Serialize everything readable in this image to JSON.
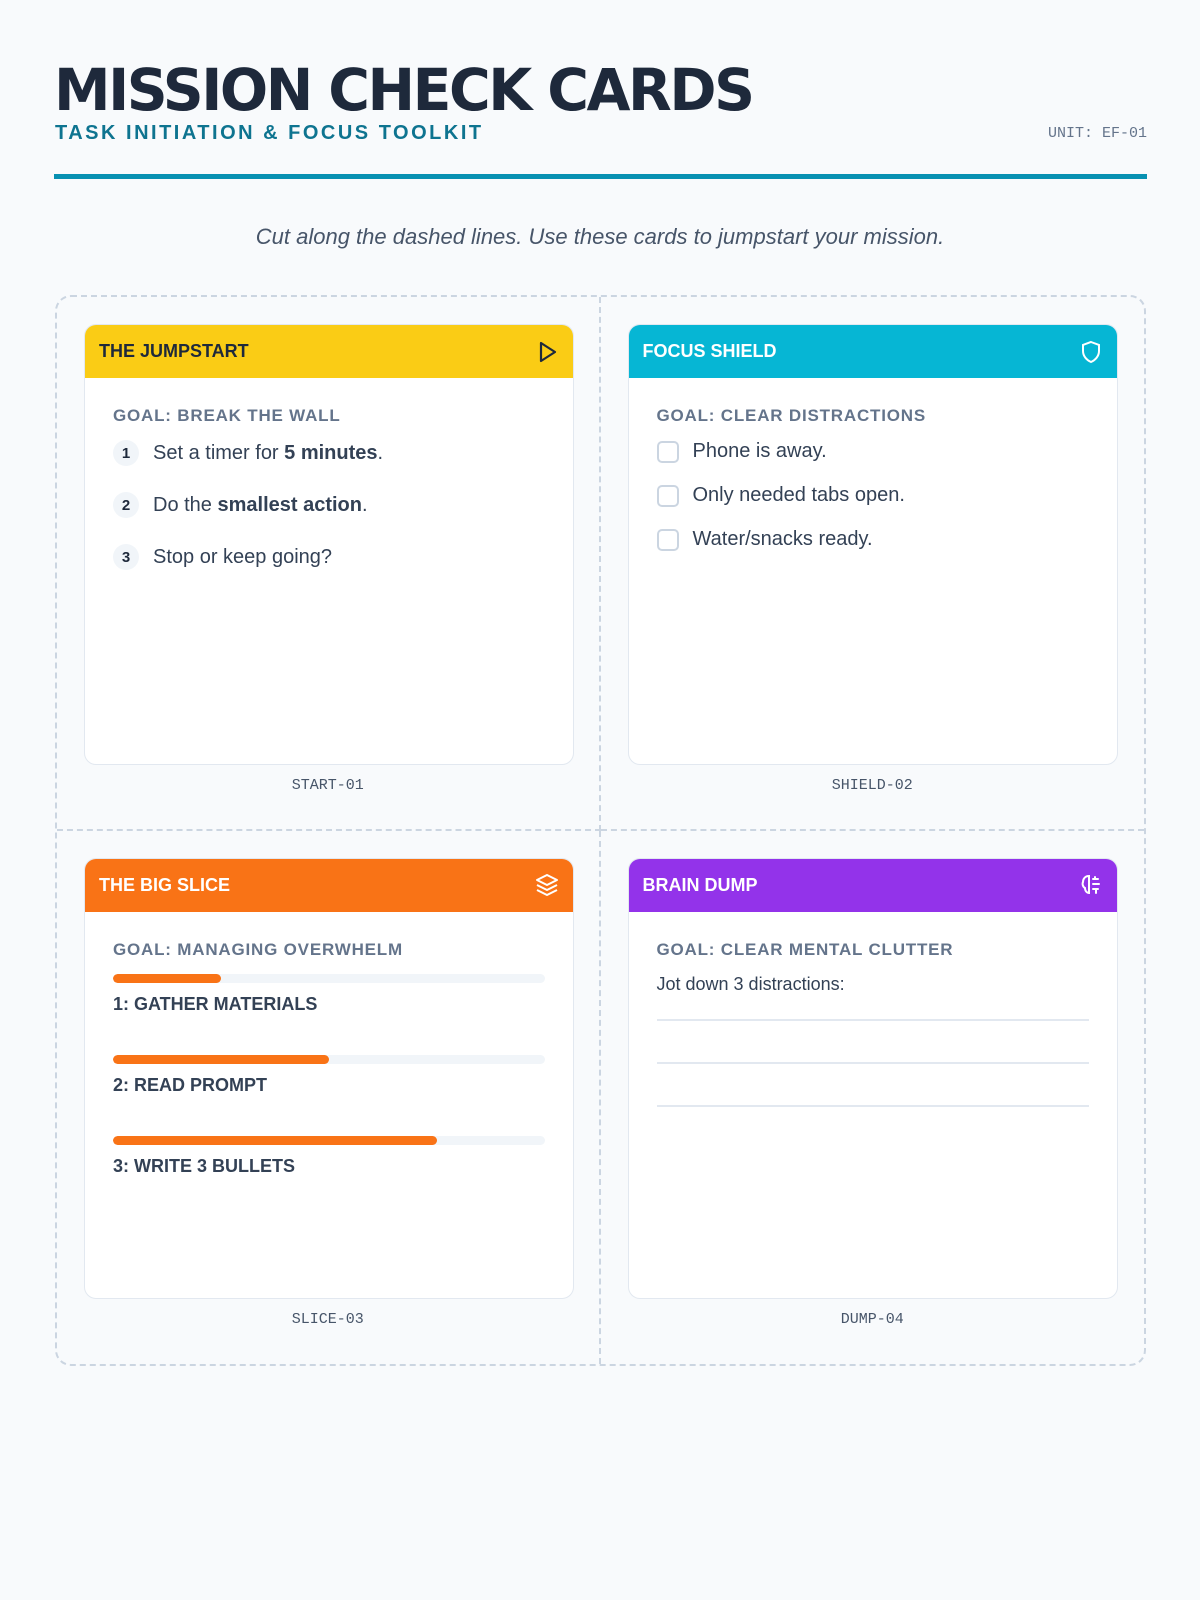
{
  "header": {
    "title": "MISSION CHECK CARDS",
    "subtitle": "TASK INITIATION & FOCUS TOOLKIT",
    "unit": "UNIT: EF-01",
    "instructions": "Cut along the dashed lines. Use these cards to jumpstart your mission."
  },
  "colors": {
    "accent": "#0891b2",
    "jumpstart": "#facc15",
    "shield": "#06b6d4",
    "slice": "#f97316",
    "dump": "#9333ea"
  },
  "cards": [
    {
      "title": "THE JUMPSTART",
      "icon": "play-icon",
      "goal": "GOAL: BREAK THE WALL",
      "code": "START-01",
      "steps": [
        {
          "n": "1",
          "pre": "Set a timer for ",
          "bold": "5 minutes",
          "post": "."
        },
        {
          "n": "2",
          "pre": "Do the ",
          "bold": "smallest action",
          "post": "."
        },
        {
          "n": "3",
          "pre": "Stop or keep going?",
          "bold": "",
          "post": ""
        }
      ]
    },
    {
      "title": "FOCUS SHIELD",
      "icon": "shield-icon",
      "goal": "GOAL: CLEAR DISTRACTIONS",
      "code": "SHIELD-02",
      "checks": [
        "Phone is away.",
        "Only needed tabs open.",
        "Water/snacks ready."
      ]
    },
    {
      "title": "THE BIG SLICE",
      "icon": "layers-icon",
      "goal": "GOAL: MANAGING OVERWHELM",
      "code": "SLICE-03",
      "slices": [
        {
          "label": "1: GATHER MATERIALS",
          "progress": 25
        },
        {
          "label": "2: READ PROMPT",
          "progress": 50
        },
        {
          "label": "3: WRITE 3 BULLETS",
          "progress": 75
        }
      ]
    },
    {
      "title": "BRAIN DUMP",
      "icon": "brain-icon",
      "goal": "GOAL: CLEAR MENTAL CLUTTER",
      "code": "DUMP-04",
      "prompt": "Jot down 3 distractions:"
    }
  ]
}
